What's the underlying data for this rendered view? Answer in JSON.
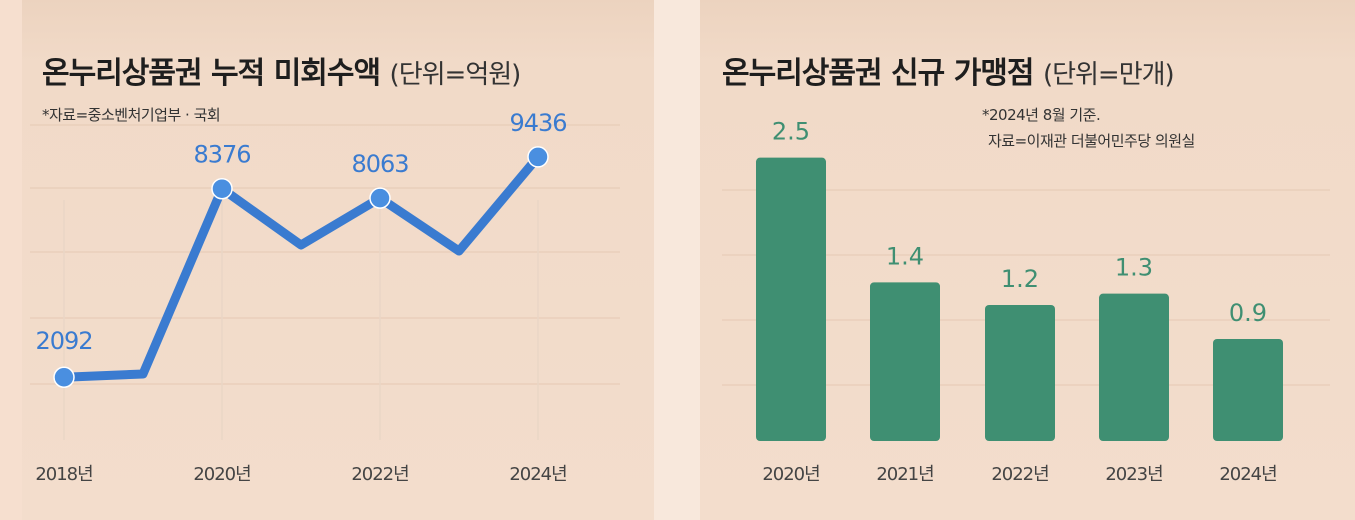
{
  "left": {
    "title": "온누리상품권 누적 미회수액",
    "unit": "(단위=억원)",
    "source": "*자료=중소벤처기업부 · 국회"
  },
  "right": {
    "title": "온누리상품권 신규 가맹점",
    "unit": "(단위=만개)",
    "note_line1": "*2024년 8월 기준.",
    "note_line2": "자료=이재관 더불어민주당 의원실"
  },
  "colors": {
    "line": "#3a7bd0",
    "bar": "#3f8f72",
    "grid": "#e9cfbb"
  },
  "chart_data": [
    {
      "type": "line",
      "title": "온누리상품권 누적 미회수액",
      "unit": "(단위=억원)",
      "x": [
        2018,
        2019,
        2020,
        2021,
        2022,
        2023,
        2024
      ],
      "x_tick_labels": [
        "2018년",
        "2020년",
        "2022년",
        "2024년"
      ],
      "x_tick_values": [
        2018,
        2020,
        2022,
        2024
      ],
      "y": [
        2092,
        2200,
        8376,
        6500,
        8063,
        6300,
        9436
      ],
      "labeled_points": [
        {
          "x": 2018,
          "label": "2092"
        },
        {
          "x": 2020,
          "label": "8376"
        },
        {
          "x": 2022,
          "label": "8063"
        },
        {
          "x": 2024,
          "label": "9436"
        }
      ],
      "ylim": [
        0,
        11000
      ],
      "grid": true
    },
    {
      "type": "bar",
      "title": "온누리상품권 신규 가맹점",
      "unit": "(단위=만개)",
      "categories": [
        "2020년",
        "2021년",
        "2022년",
        "2023년",
        "2024년"
      ],
      "values": [
        2.5,
        1.4,
        1.2,
        1.3,
        0.9
      ],
      "value_labels": [
        "2.5",
        "1.4",
        "1.2",
        "1.3",
        "0.9"
      ],
      "ylim": [
        0,
        2.7
      ],
      "grid": true
    }
  ]
}
